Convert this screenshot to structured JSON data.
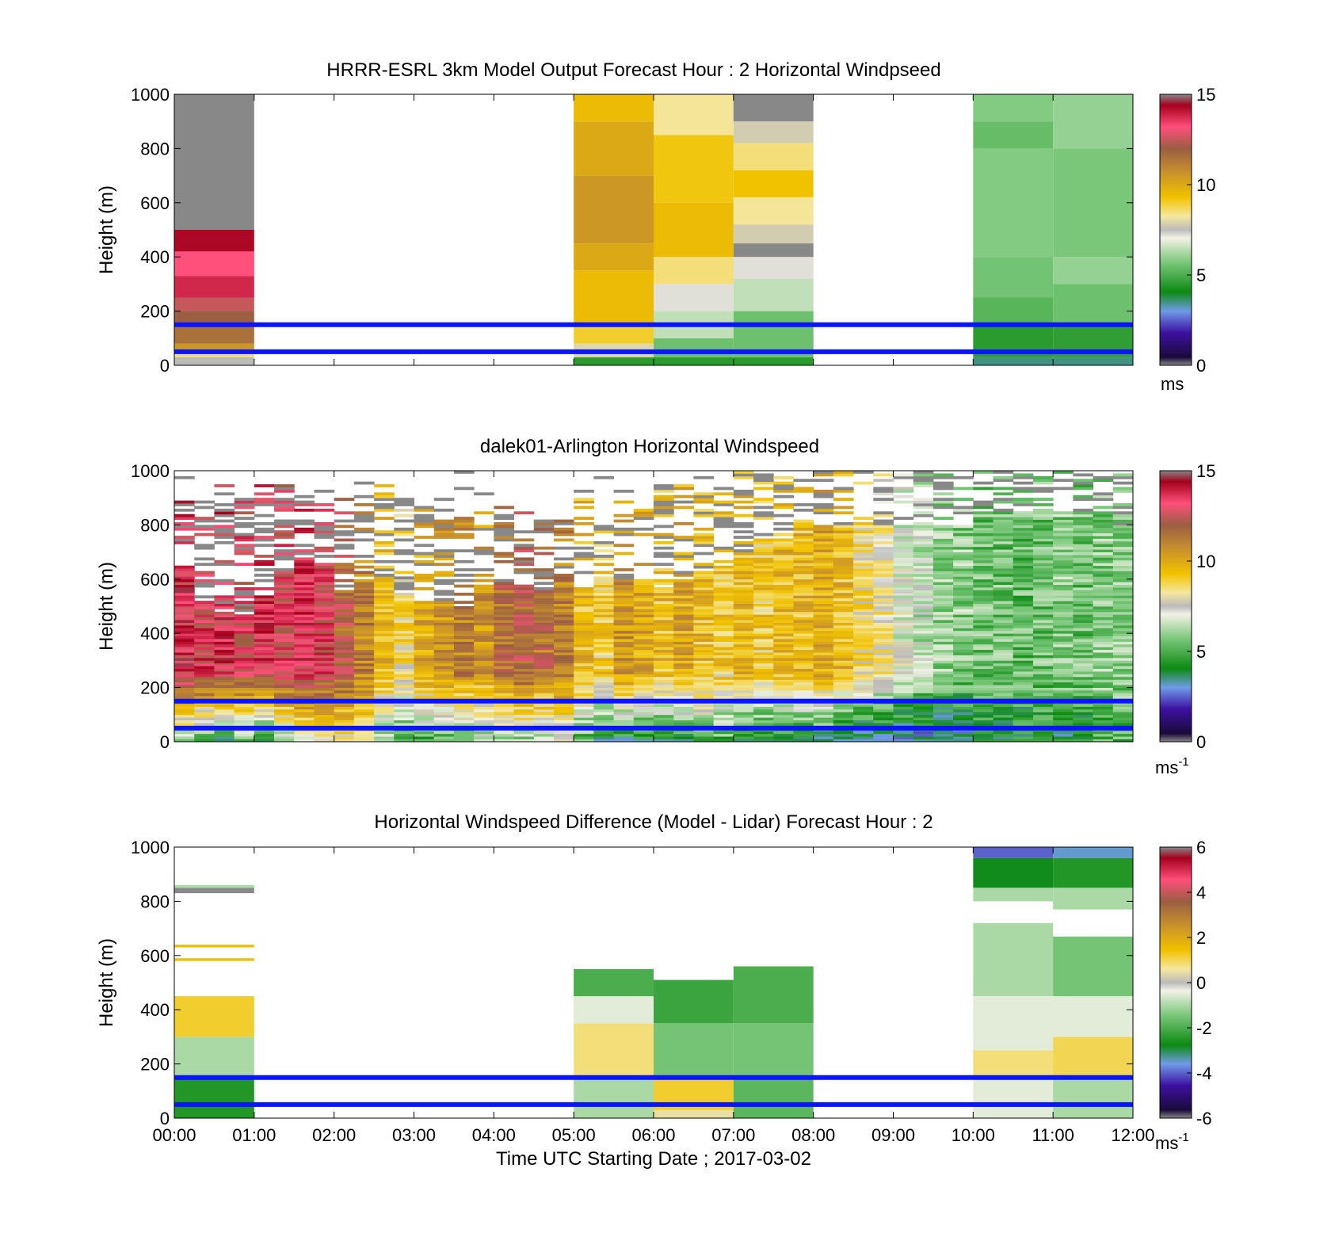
{
  "chart_data": [
    {
      "type": "heatmap",
      "title": "HRRR-ESRL 3km Model Output   Forecast Hour : 2 Horizontal Windpseed",
      "ylabel": "Height (m)",
      "ylim": [
        0,
        1000
      ],
      "yticks": [
        "0",
        "200",
        "400",
        "600",
        "800",
        "1000"
      ],
      "colorbar": {
        "range": [
          0,
          15
        ],
        "ticks": [
          "0",
          "5",
          "10",
          "15"
        ],
        "unit": "ms",
        "unit_sup": ""
      },
      "reference_lines_m": [
        150,
        50
      ],
      "columns": [
        {
          "hour": 0,
          "cells": [
            [
              0,
              30,
              7.5
            ],
            [
              30,
              50,
              8.5
            ],
            [
              50,
              80,
              10.5
            ],
            [
              80,
              150,
              11.5
            ],
            [
              150,
              200,
              12.0
            ],
            [
              200,
              250,
              12.5
            ],
            [
              250,
              330,
              13.8
            ],
            [
              330,
              420,
              13.2
            ],
            [
              420,
              500,
              14.3
            ],
            [
              500,
              1000,
              15.0
            ]
          ]
        },
        {
          "hour": 5,
          "cells": [
            [
              0,
              30,
              4.5
            ],
            [
              30,
              80,
              8.0
            ],
            [
              80,
              150,
              9.0
            ],
            [
              150,
              350,
              9.5
            ],
            [
              350,
              450,
              10.0
            ],
            [
              450,
              700,
              10.5
            ],
            [
              700,
              900,
              10.0
            ],
            [
              900,
              1000,
              9.5
            ]
          ]
        },
        {
          "hour": 6,
          "cells": [
            [
              0,
              30,
              4.5
            ],
            [
              30,
              100,
              5.5
            ],
            [
              100,
              200,
              6.5
            ],
            [
              200,
              300,
              7.2
            ],
            [
              300,
              400,
              8.5
            ],
            [
              400,
              600,
              9.5
            ],
            [
              600,
              850,
              9.2
            ],
            [
              850,
              1000,
              8.3
            ]
          ]
        },
        {
          "hour": 7,
          "cells": [
            [
              0,
              30,
              4.5
            ],
            [
              30,
              200,
              5.5
            ],
            [
              200,
              320,
              6.5
            ],
            [
              320,
              400,
              7.2
            ],
            [
              400,
              450,
              15.0
            ],
            [
              450,
              520,
              7.8
            ],
            [
              520,
              620,
              8.3
            ],
            [
              620,
              720,
              9.3
            ],
            [
              720,
              820,
              8.5
            ],
            [
              820,
              900,
              7.8
            ],
            [
              900,
              1000,
              15.0
            ]
          ]
        },
        {
          "hour": 10,
          "cells": [
            [
              0,
              30,
              3.5
            ],
            [
              30,
              150,
              4.5
            ],
            [
              150,
              250,
              5.2
            ],
            [
              250,
              400,
              5.6
            ],
            [
              400,
              800,
              5.8
            ],
            [
              800,
              900,
              5.4
            ],
            [
              900,
              1000,
              5.8
            ]
          ]
        },
        {
          "hour": 11,
          "cells": [
            [
              0,
              30,
              3.5
            ],
            [
              30,
              150,
              4.6
            ],
            [
              150,
              300,
              5.5
            ],
            [
              300,
              400,
              6.0
            ],
            [
              400,
              800,
              5.7
            ],
            [
              800,
              1000,
              6.0
            ]
          ]
        }
      ]
    },
    {
      "type": "heatmap",
      "title": "dalek01-Arlington  Horizontal Windspeed",
      "ylabel": "Height (m)",
      "ylim": [
        0,
        1000
      ],
      "yticks": [
        "0",
        "200",
        "400",
        "600",
        "800",
        "1000"
      ],
      "colorbar": {
        "range": [
          0,
          15
        ],
        "ticks": [
          "0",
          "5",
          "10",
          "15"
        ],
        "unit": "ms",
        "unit_sup": "-1"
      },
      "reference_lines_m": [
        150,
        50
      ],
      "column_minutes": 15,
      "profiles": [
        [
          0.0,
          6,
          13.6,
          650,
          900
        ],
        [
          0.25,
          5,
          13.2,
          520,
          900
        ],
        [
          0.5,
          4,
          13.5,
          480,
          950
        ],
        [
          0.75,
          5,
          13.0,
          470,
          900
        ],
        [
          1.0,
          4,
          13.4,
          540,
          950
        ],
        [
          1.25,
          6,
          13.0,
          600,
          950
        ],
        [
          1.5,
          7,
          13.5,
          680,
          900
        ],
        [
          1.75,
          8,
          13.0,
          650,
          900
        ],
        [
          2.0,
          8,
          12.0,
          560,
          950
        ],
        [
          2.25,
          8,
          11.0,
          600,
          950
        ],
        [
          2.5,
          6,
          9.5,
          600,
          950
        ],
        [
          2.75,
          5,
          8.5,
          550,
          900
        ],
        [
          3.0,
          5,
          10.0,
          500,
          900
        ],
        [
          3.25,
          5,
          10.5,
          520,
          900
        ],
        [
          3.5,
          5,
          11.0,
          500,
          850
        ],
        [
          3.75,
          6,
          10.5,
          580,
          850
        ],
        [
          4.0,
          6,
          11.5,
          580,
          880
        ],
        [
          4.25,
          6,
          12.0,
          580,
          850
        ],
        [
          4.5,
          6,
          11.5,
          560,
          850
        ],
        [
          4.75,
          7,
          11.0,
          620,
          850
        ],
        [
          5.0,
          5,
          9.5,
          560,
          900
        ],
        [
          5.25,
          4,
          9.0,
          600,
          900
        ],
        [
          5.5,
          4,
          10.5,
          600,
          900
        ],
        [
          5.75,
          4,
          10.0,
          580,
          900
        ],
        [
          6.0,
          4,
          9.5,
          560,
          950
        ],
        [
          6.25,
          4,
          10.0,
          600,
          950
        ],
        [
          6.5,
          5,
          9.5,
          620,
          1000
        ],
        [
          6.75,
          5,
          9.0,
          650,
          1000
        ],
        [
          7.0,
          4,
          9.5,
          700,
          1000
        ],
        [
          7.25,
          4,
          9.0,
          750,
          1000
        ],
        [
          7.5,
          4,
          9.5,
          750,
          1000
        ],
        [
          7.75,
          4,
          9.5,
          800,
          1000
        ],
        [
          8.0,
          4,
          10.0,
          800,
          1000
        ],
        [
          8.25,
          3,
          9.5,
          800,
          1000
        ],
        [
          8.5,
          3,
          8.5,
          800,
          1000
        ],
        [
          8.75,
          3,
          8.0,
          800,
          1000
        ],
        [
          9.0,
          3,
          7.0,
          800,
          1000
        ],
        [
          9.25,
          3,
          6.5,
          800,
          1000
        ],
        [
          9.5,
          3,
          6.0,
          800,
          1000
        ],
        [
          9.75,
          3,
          5.8,
          800,
          1000
        ],
        [
          10.0,
          4,
          5.5,
          850,
          1000
        ],
        [
          10.25,
          4,
          5.5,
          850,
          1000
        ],
        [
          10.5,
          4,
          5.3,
          850,
          1000
        ],
        [
          10.75,
          4,
          5.5,
          850,
          1000
        ],
        [
          11.0,
          4,
          5.8,
          850,
          1000
        ],
        [
          11.25,
          4,
          5.5,
          850,
          1000
        ],
        [
          11.5,
          5,
          5.8,
          850,
          1000
        ],
        [
          11.75,
          5,
          6.0,
          800,
          1000
        ]
      ]
    },
    {
      "type": "heatmap",
      "title": "Horizontal Windspeed Difference (Model - Lidar) Forecast Hour : 2",
      "ylabel": "Height (m)",
      "xlabel": "Time UTC  Starting Date ; 2017-03-02",
      "ylim": [
        0,
        1000
      ],
      "yticks": [
        "0",
        "200",
        "400",
        "600",
        "800",
        "1000"
      ],
      "xticks": [
        "00:00",
        "01:00",
        "02:00",
        "03:00",
        "04:00",
        "05:00",
        "06:00",
        "07:00",
        "08:00",
        "09:00",
        "10:00",
        "11:00",
        "12:00"
      ],
      "colorbar": {
        "range": [
          -6,
          6
        ],
        "ticks": [
          "-6",
          "-4",
          "-2",
          "0",
          "2",
          "4",
          "6"
        ],
        "unit": "ms",
        "unit_sup": "-1"
      },
      "reference_lines_m": [
        150,
        50
      ],
      "columns": [
        {
          "hour": 0,
          "cells": [
            [
              0,
              150,
              -2.5
            ],
            [
              150,
              300,
              -1.0
            ],
            [
              300,
              450,
              1.2
            ],
            [
              580,
              590,
              1.5
            ],
            [
              630,
              640,
              1.5
            ],
            [
              830,
              850,
              6.0
            ],
            [
              850,
              860,
              -1.0
            ]
          ]
        },
        {
          "hour": 5,
          "cells": [
            [
              0,
              150,
              -1.0
            ],
            [
              150,
              350,
              0.8
            ],
            [
              350,
              450,
              -0.5
            ],
            [
              450,
              550,
              -2.0
            ]
          ]
        },
        {
          "hour": 6,
          "cells": [
            [
              0,
              30,
              0.5
            ],
            [
              30,
              150,
              1.2
            ],
            [
              150,
              350,
              -1.5
            ],
            [
              350,
              510,
              -2.2
            ]
          ]
        },
        {
          "hour": 7,
          "cells": [
            [
              0,
              150,
              -1.8
            ],
            [
              150,
              350,
              -1.5
            ],
            [
              350,
              560,
              -2.0
            ]
          ]
        },
        {
          "hour": 10,
          "cells": [
            [
              0,
              150,
              -0.5
            ],
            [
              150,
              250,
              0.8
            ],
            [
              250,
              450,
              -0.5
            ],
            [
              450,
              720,
              -1.0
            ],
            [
              800,
              850,
              -1.0
            ],
            [
              850,
              960,
              -2.8
            ],
            [
              960,
              1000,
              -4.0
            ]
          ]
        },
        {
          "hour": 11,
          "cells": [
            [
              0,
              150,
              -1.0
            ],
            [
              150,
              300,
              1.0
            ],
            [
              300,
              450,
              -0.5
            ],
            [
              450,
              670,
              -1.5
            ],
            [
              770,
              850,
              -1.0
            ],
            [
              850,
              960,
              -2.5
            ],
            [
              960,
              1000,
              -3.5
            ]
          ]
        }
      ]
    }
  ]
}
